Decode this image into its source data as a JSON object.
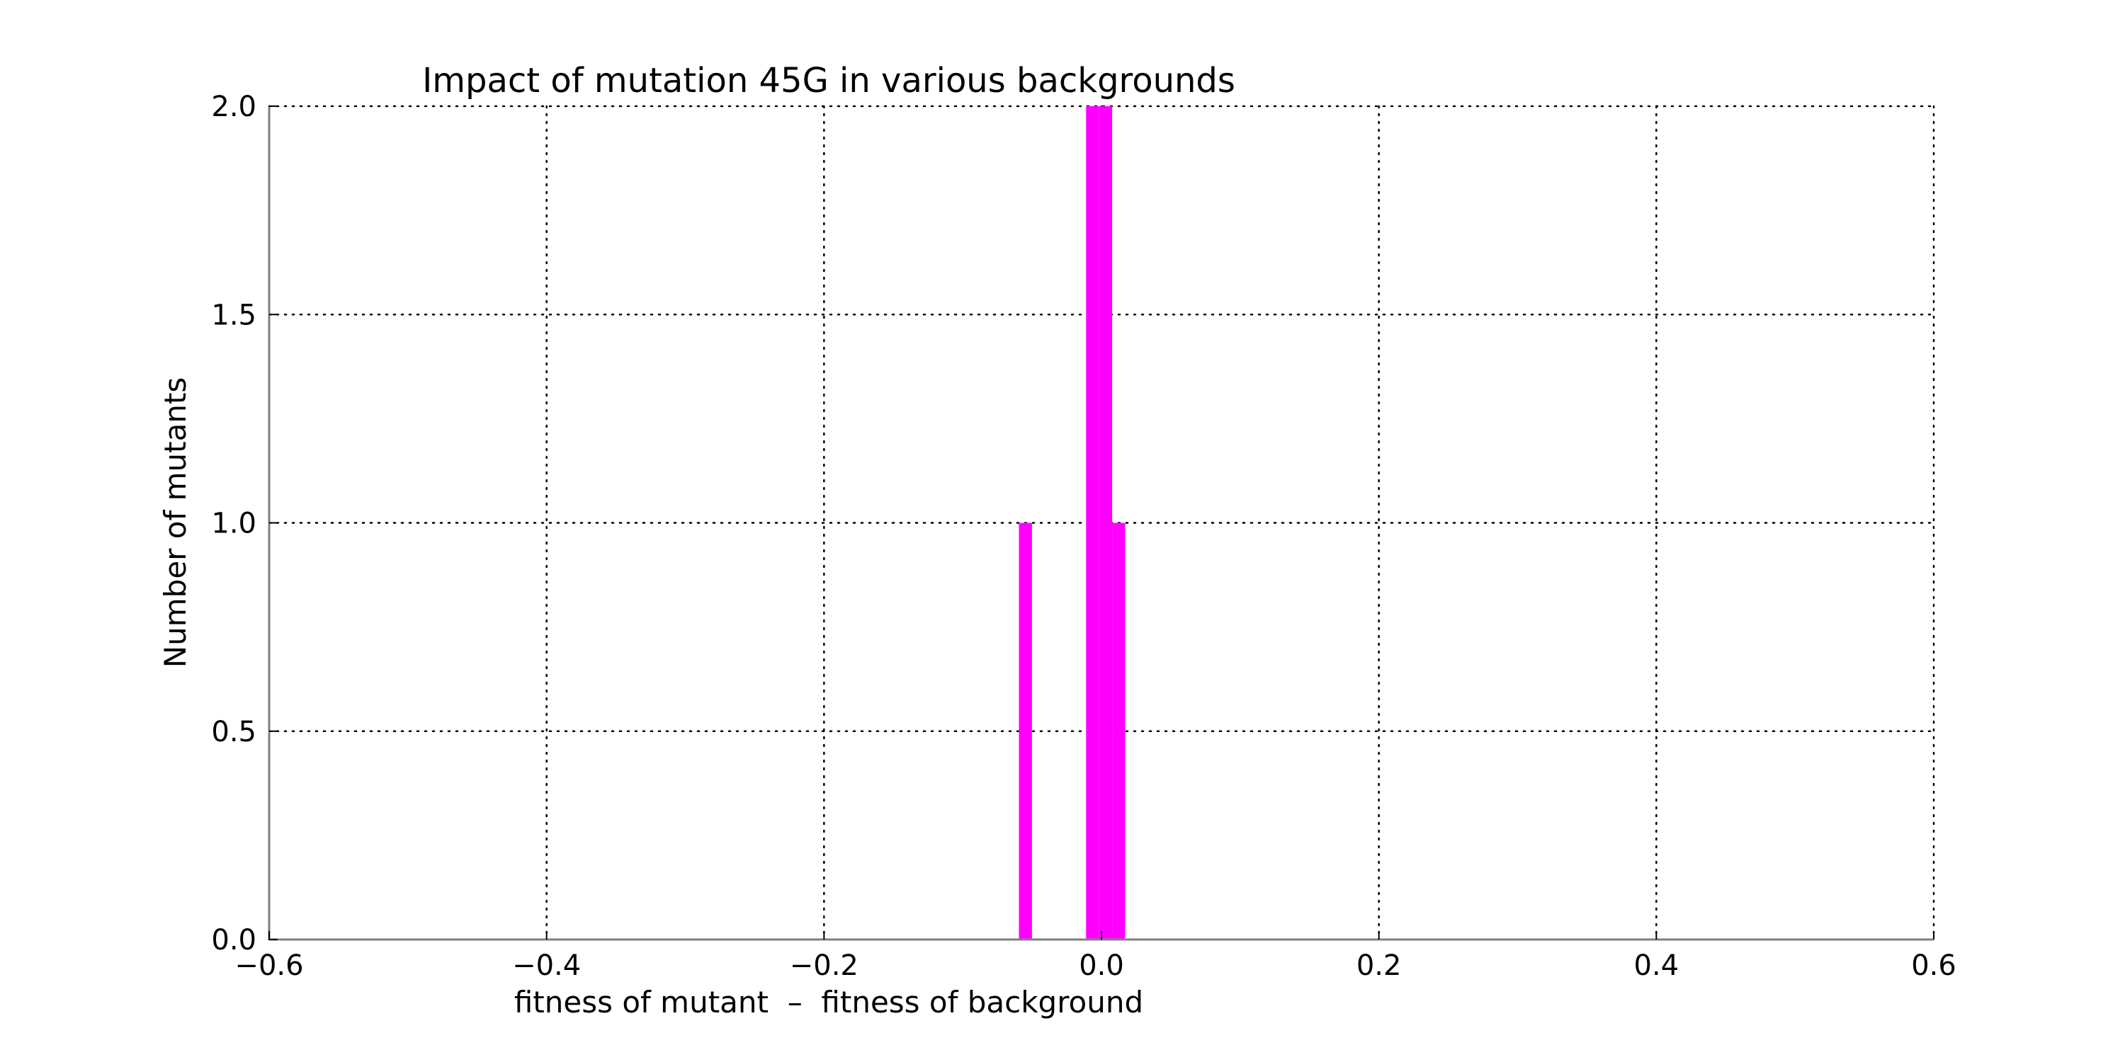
{
  "chart_data": {
    "type": "bar",
    "title": "Impact of mutation 45G in various backgrounds",
    "xlabel": "fitness of mutant  –  fitness of background",
    "ylabel": "Number of mutants",
    "xlim": [
      -0.6,
      0.6
    ],
    "ylim": [
      0.0,
      2.0
    ],
    "xticks": [
      -0.6,
      -0.4,
      -0.2,
      0.0,
      0.2,
      0.4,
      0.6
    ],
    "xtick_labels": [
      "−0.6",
      "−0.4",
      "−0.2",
      "0.0",
      "0.2",
      "0.4",
      "0.6"
    ],
    "yticks": [
      0.0,
      0.5,
      1.0,
      1.5,
      2.0
    ],
    "ytick_labels": [
      "0.0",
      "0.5",
      "1.0",
      "1.5",
      "2.0"
    ],
    "grid": true,
    "color": "#ff00ff",
    "bin_width": 0.0094,
    "bins": [
      {
        "x_start": -0.0595,
        "count": 1
      },
      {
        "x_start": -0.0111,
        "count": 2
      },
      {
        "x_start": -0.0017,
        "count": 2
      },
      {
        "x_start": 0.0077,
        "count": 1
      }
    ]
  }
}
